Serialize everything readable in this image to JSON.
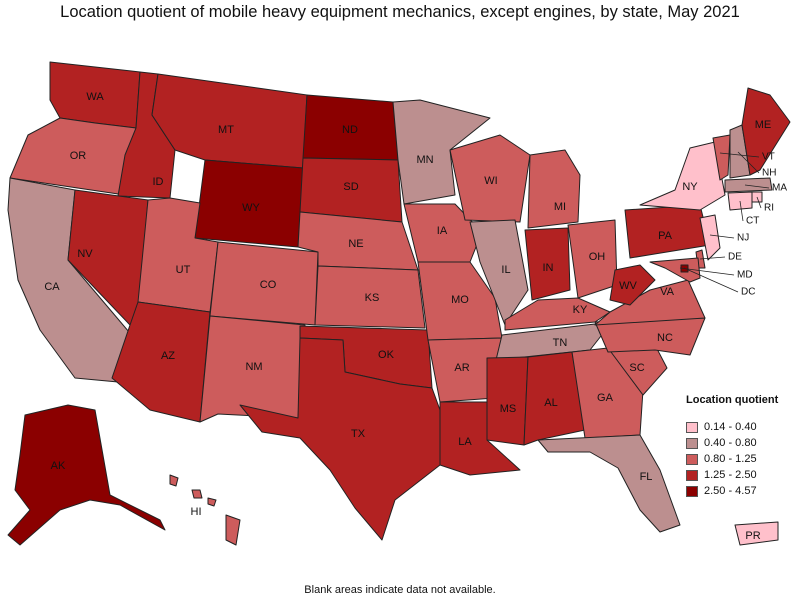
{
  "title": "Location quotient of mobile heavy equipment mechanics, except engines, by state, May 2021",
  "footnote": "Blank areas indicate data not available.",
  "legend": {
    "title": "Location quotient",
    "items": [
      {
        "label": "0.14 - 0.40",
        "color": "#ffc0cb"
      },
      {
        "label": "0.40 - 0.80",
        "color": "#bc8f8f"
      },
      {
        "label": "0.80 - 1.25",
        "color": "#cd5c5c"
      },
      {
        "label": "1.25 - 2.50",
        "color": "#b22222"
      },
      {
        "label": "2.50 - 4.57",
        "color": "#8b0000"
      }
    ]
  },
  "states": [
    {
      "abbr": "WA",
      "class": 3
    },
    {
      "abbr": "OR",
      "class": 2
    },
    {
      "abbr": "CA",
      "class": 1
    },
    {
      "abbr": "ID",
      "class": 3
    },
    {
      "abbr": "NV",
      "class": 3
    },
    {
      "abbr": "MT",
      "class": 3
    },
    {
      "abbr": "WY",
      "class": 4
    },
    {
      "abbr": "UT",
      "class": 2
    },
    {
      "abbr": "AZ",
      "class": 3
    },
    {
      "abbr": "CO",
      "class": 2
    },
    {
      "abbr": "NM",
      "class": 2
    },
    {
      "abbr": "ND",
      "class": 4
    },
    {
      "abbr": "SD",
      "class": 3
    },
    {
      "abbr": "NE",
      "class": 2
    },
    {
      "abbr": "KS",
      "class": 2
    },
    {
      "abbr": "OK",
      "class": 3
    },
    {
      "abbr": "TX",
      "class": 3
    },
    {
      "abbr": "MN",
      "class": 1
    },
    {
      "abbr": "IA",
      "class": 2
    },
    {
      "abbr": "MO",
      "class": 2
    },
    {
      "abbr": "AR",
      "class": 2
    },
    {
      "abbr": "LA",
      "class": 3
    },
    {
      "abbr": "WI",
      "class": 2
    },
    {
      "abbr": "IL",
      "class": 1
    },
    {
      "abbr": "MI",
      "class": 2
    },
    {
      "abbr": "IN",
      "class": 3
    },
    {
      "abbr": "OH",
      "class": 2
    },
    {
      "abbr": "KY",
      "class": 2
    },
    {
      "abbr": "TN",
      "class": 1
    },
    {
      "abbr": "MS",
      "class": 3
    },
    {
      "abbr": "AL",
      "class": 3
    },
    {
      "abbr": "GA",
      "class": 2
    },
    {
      "abbr": "FL",
      "class": 1
    },
    {
      "abbr": "SC",
      "class": 2
    },
    {
      "abbr": "NC",
      "class": 2
    },
    {
      "abbr": "VA",
      "class": 2
    },
    {
      "abbr": "WV",
      "class": 3
    },
    {
      "abbr": "PA",
      "class": 3
    },
    {
      "abbr": "NY",
      "class": 0
    },
    {
      "abbr": "VT",
      "class": 2
    },
    {
      "abbr": "NH",
      "class": 1
    },
    {
      "abbr": "ME",
      "class": 3
    },
    {
      "abbr": "MA",
      "class": 1
    },
    {
      "abbr": "RI",
      "class": 0
    },
    {
      "abbr": "CT",
      "class": 0
    },
    {
      "abbr": "NJ",
      "class": 0
    },
    {
      "abbr": "DE",
      "class": 2
    },
    {
      "abbr": "MD",
      "class": 2
    },
    {
      "abbr": "DC",
      "class": 4
    },
    {
      "abbr": "AK",
      "class": 4
    },
    {
      "abbr": "HI",
      "class": 2
    },
    {
      "abbr": "PR",
      "class": 0
    }
  ]
}
